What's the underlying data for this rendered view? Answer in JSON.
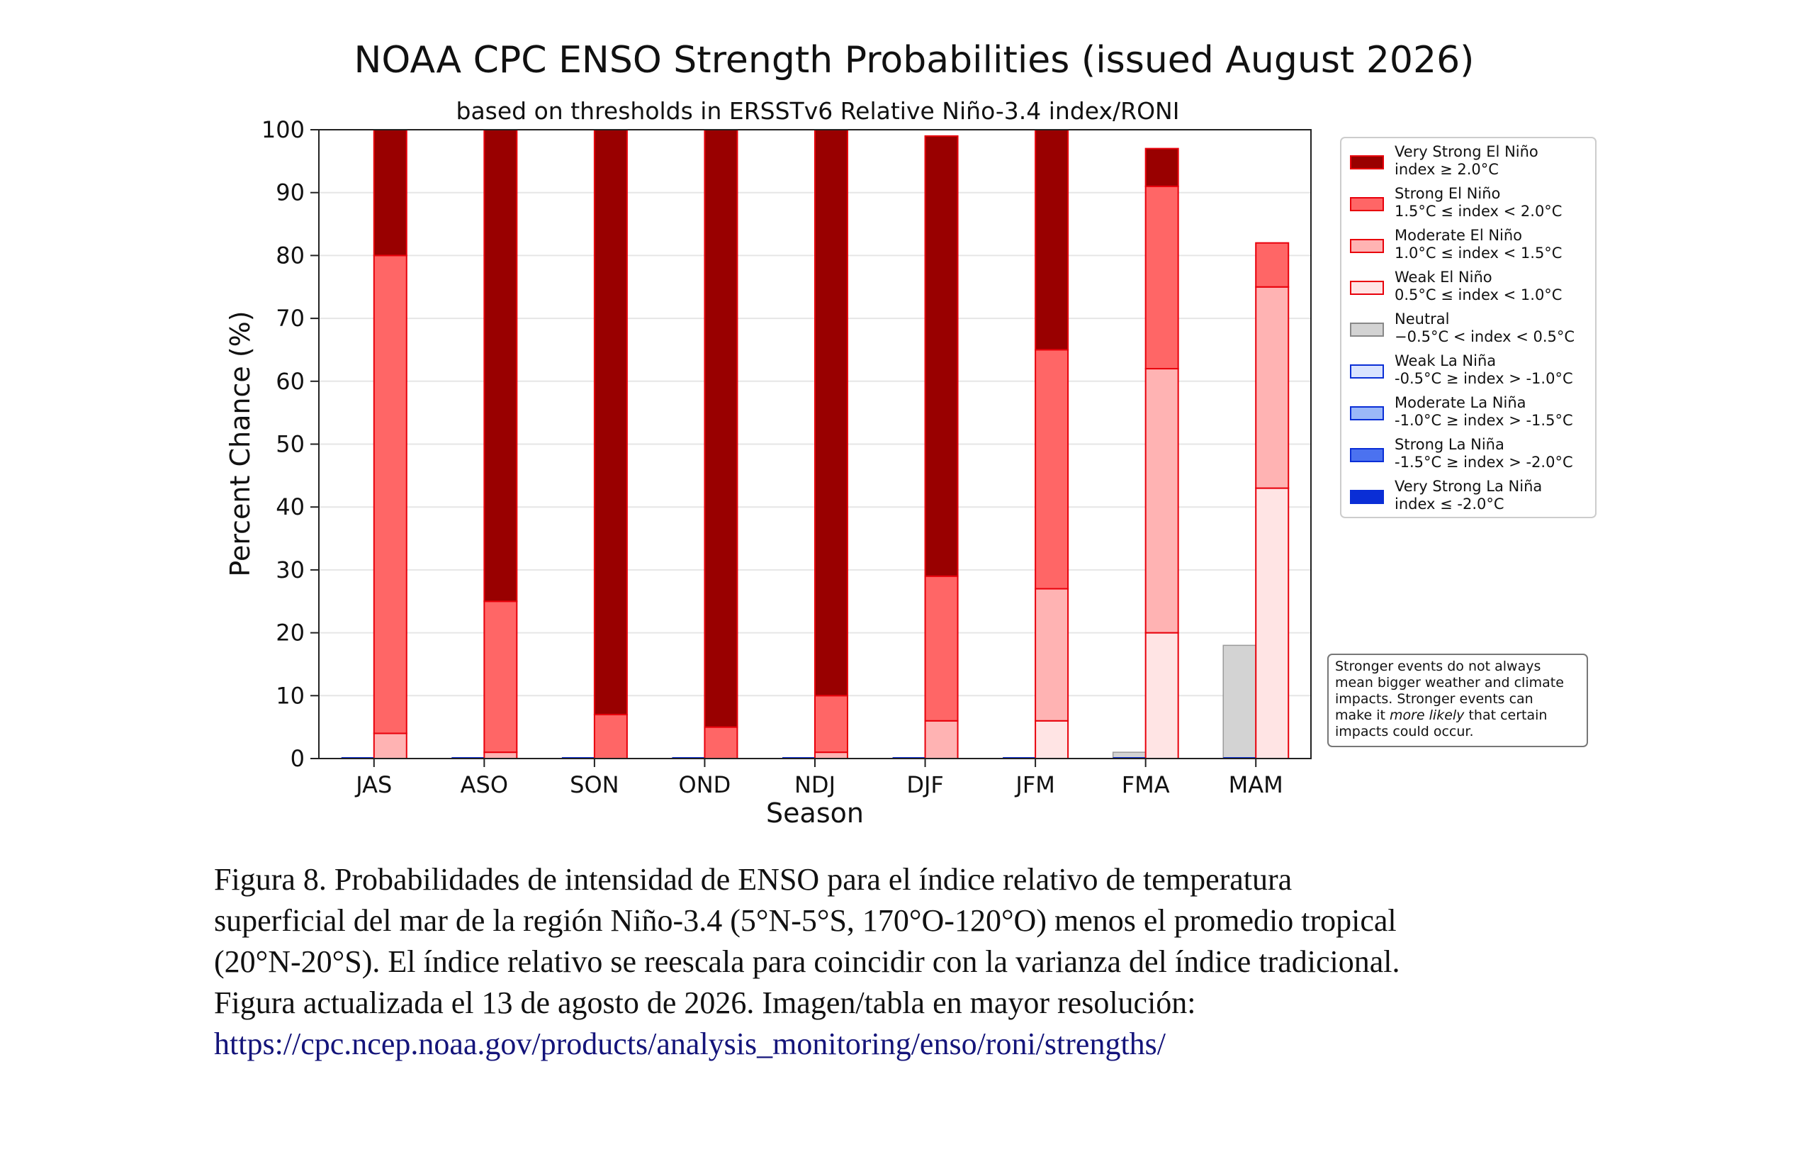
{
  "chart_data": {
    "type": "bar",
    "stacked": true,
    "title": "NOAA CPC ENSO Strength Probabilities (issued August 2026)",
    "subtitle": "based on thresholds in ERSSTv6 Relative Niño-3.4 index/RONI",
    "xlabel": "Season",
    "ylabel": "Percent Chance (%)",
    "ylim": [
      0,
      100
    ],
    "yticks": [
      0,
      10,
      20,
      30,
      40,
      50,
      60,
      70,
      80,
      90,
      100
    ],
    "grid": "horizontal",
    "legend_position": "outside-right",
    "categories": [
      "JAS",
      "ASO",
      "SON",
      "OND",
      "NDJ",
      "DJF",
      "JFM",
      "FMA",
      "MAM"
    ],
    "la_nina_series": [
      {
        "name": "Very Strong La Niña",
        "values": [
          0,
          0,
          0,
          0,
          0,
          0,
          0,
          0,
          0
        ],
        "color": "#0a2ed6"
      },
      {
        "name": "Strong La Niña",
        "values": [
          0,
          0,
          0,
          0,
          0,
          0,
          0,
          0,
          0
        ],
        "color": "#4b72f0"
      },
      {
        "name": "Moderate La Niña",
        "values": [
          0,
          0,
          0,
          0,
          0,
          0,
          0,
          0,
          0
        ],
        "color": "#9bb8f8"
      },
      {
        "name": "Weak La Niña",
        "values": [
          0,
          0,
          0,
          0,
          0,
          0,
          0,
          0,
          0
        ],
        "color": "#d9e3ff"
      },
      {
        "name": "Neutral",
        "values": [
          0,
          0,
          0,
          0,
          0,
          0,
          0,
          1,
          18
        ],
        "color": "#d3d3d3"
      }
    ],
    "el_nino_series": [
      {
        "name": "Weak El Niño",
        "values": [
          0,
          0,
          0,
          0,
          0,
          0,
          6,
          20,
          43
        ],
        "color": "#ffe4e4"
      },
      {
        "name": "Moderate El Niño",
        "values": [
          4,
          1,
          0,
          0,
          1,
          6,
          21,
          42,
          32
        ],
        "color": "#ffb3b3"
      },
      {
        "name": "Strong El Niño",
        "values": [
          76,
          24,
          7,
          5,
          9,
          23,
          38,
          29,
          7
        ],
        "color": "#ff6666"
      },
      {
        "name": "Very Strong El Niño",
        "values": [
          20,
          75,
          93,
          95,
          90,
          70,
          35,
          6,
          0
        ],
        "color": "#990000"
      }
    ],
    "edge_color_el_nino": "#e8000b",
    "legend": [
      {
        "title": "Very Strong El Niño",
        "range": "index ≥ 2.0°C",
        "color": "#990000",
        "edge": "#e8000b"
      },
      {
        "title": "Strong El Niño",
        "range": "1.5°C ≤ index < 2.0°C",
        "color": "#ff6666",
        "edge": "#e8000b"
      },
      {
        "title": "Moderate El Niño",
        "range": "1.0°C ≤ index < 1.5°C",
        "color": "#ffb3b3",
        "edge": "#e8000b"
      },
      {
        "title": "Weak El Niño",
        "range": "0.5°C ≤ index < 1.0°C",
        "color": "#ffe4e4",
        "edge": "#e8000b"
      },
      {
        "title": "Neutral",
        "range": "−0.5°C < index < 0.5°C",
        "color": "#d3d3d3",
        "edge": "#888888"
      },
      {
        "title": "Weak La Niña",
        "range": "-0.5°C ≥ index > -1.0°C",
        "color": "#d9e3ff",
        "edge": "#0a2ed6"
      },
      {
        "title": "Moderate La Niña",
        "range": "-1.0°C ≥ index > -1.5°C",
        "color": "#9bb8f8",
        "edge": "#0a2ed6"
      },
      {
        "title": "Strong La Niña",
        "range": "-1.5°C ≥ index > -2.0°C",
        "color": "#4b72f0",
        "edge": "#0a2ed6"
      },
      {
        "title": "Very Strong La Niña",
        "range": "index ≤ -2.0°C",
        "color": "#0a2ed6",
        "edge": "#0a2ed6"
      }
    ],
    "note": {
      "line1": "Stronger events do not always",
      "line2": "mean bigger weather and climate",
      "line3": "impacts. Stronger events can",
      "line4_before": "make it ",
      "line4_italic": "more likely",
      "line4_after": " that certain",
      "line5": "impacts could occur."
    }
  },
  "caption": {
    "line1": "Figura 8. Probabilidades de intensidad de ENSO para el índice relativo de temperatura",
    "line2": "superficial del mar de la región Niño-3.4 (5°N-5°S, 170°O-120°O) menos el promedio tropical",
    "line3": "(20°N-20°S). El índice relativo se reescala para coincidir con la varianza del índice tradicional.",
    "line4": "Figura actualizada el 13 de agosto de 2026. Imagen/tabla en mayor resolución:",
    "link": "https://cpc.ncep.noaa.gov/products/analysis_monitoring/enso/roni/strengths/"
  }
}
